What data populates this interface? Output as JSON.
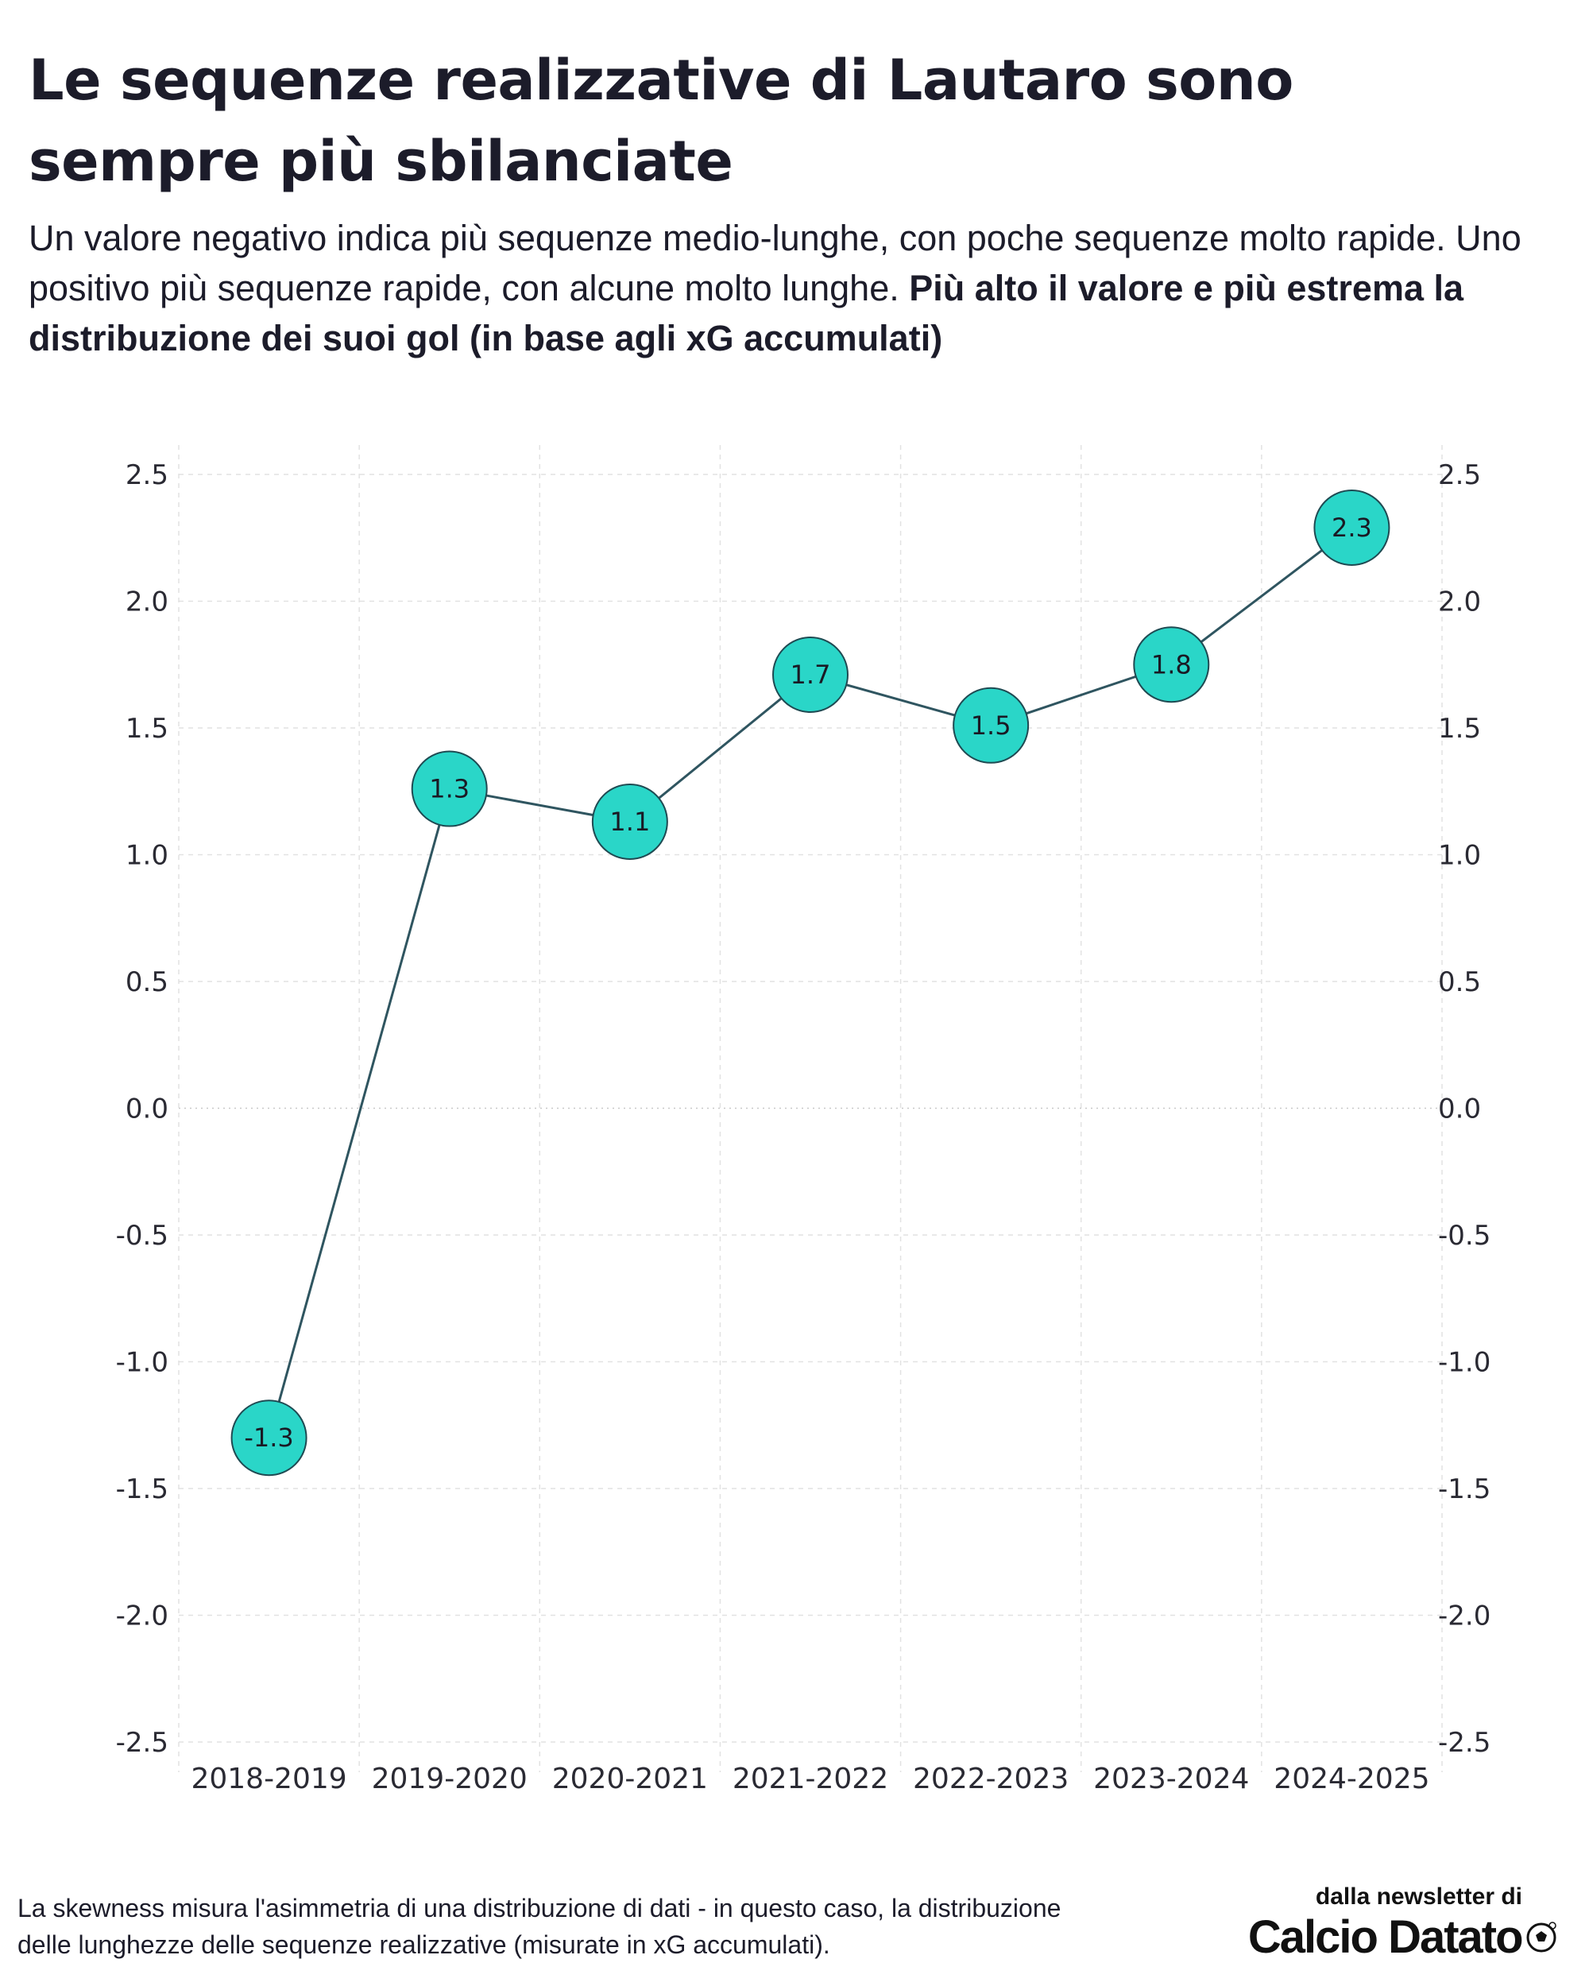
{
  "title": "Le sequenze realizzative di Lautaro sono sempre più sbilanciate",
  "subtitle_regular": "Un valore negativo indica più sequenze medio-lunghe, con poche sequenze molto rapide. Uno positivo più sequenze rapide, con alcune molto lunghe.",
  "subtitle_bold": "Più alto il valore e più estrema la distribuzione dei suoi gol (in base agli xG accumulati)",
  "footnote": "La skewness misura l'asimmetria di una distribuzione di dati - in questo caso, la distribuzione delle lunghezze delle sequenze realizzative (misurate in xG accumulati).",
  "credit": {
    "line1": "dalla newsletter di",
    "brand": "Calcio Datato",
    "icon": "soccer-ball-icon"
  },
  "colors": {
    "marker_fill": "#2ad6c8",
    "marker_stroke": "#1f4a52",
    "line": "#2f5560",
    "grid": "#e2e2e2"
  },
  "chart_data": {
    "type": "line",
    "categories": [
      "2018-2019",
      "2019-2020",
      "2020-2021",
      "2021-2022",
      "2022-2023",
      "2023-2024",
      "2024-2025"
    ],
    "values": [
      -1.3,
      1.26,
      1.13,
      1.71,
      1.51,
      1.75,
      2.29
    ],
    "data_labels": [
      "-1.3",
      "1.3",
      "1.1",
      "1.7",
      "1.5",
      "1.8",
      "2.3"
    ],
    "ylim": [
      -2.5,
      2.5
    ],
    "yticks": [
      "2.5",
      "2.0",
      "1.5",
      "1.0",
      "0.5",
      "0.0",
      "-0.5",
      "-1.0",
      "-1.5",
      "-2.0",
      "-2.5"
    ],
    "ytick_values": [
      2.5,
      2.0,
      1.5,
      1.0,
      0.5,
      0.0,
      -0.5,
      -1.0,
      -1.5,
      -2.0,
      -2.5
    ],
    "right_axis": true,
    "grid": true,
    "xlabel": "",
    "ylabel": ""
  }
}
